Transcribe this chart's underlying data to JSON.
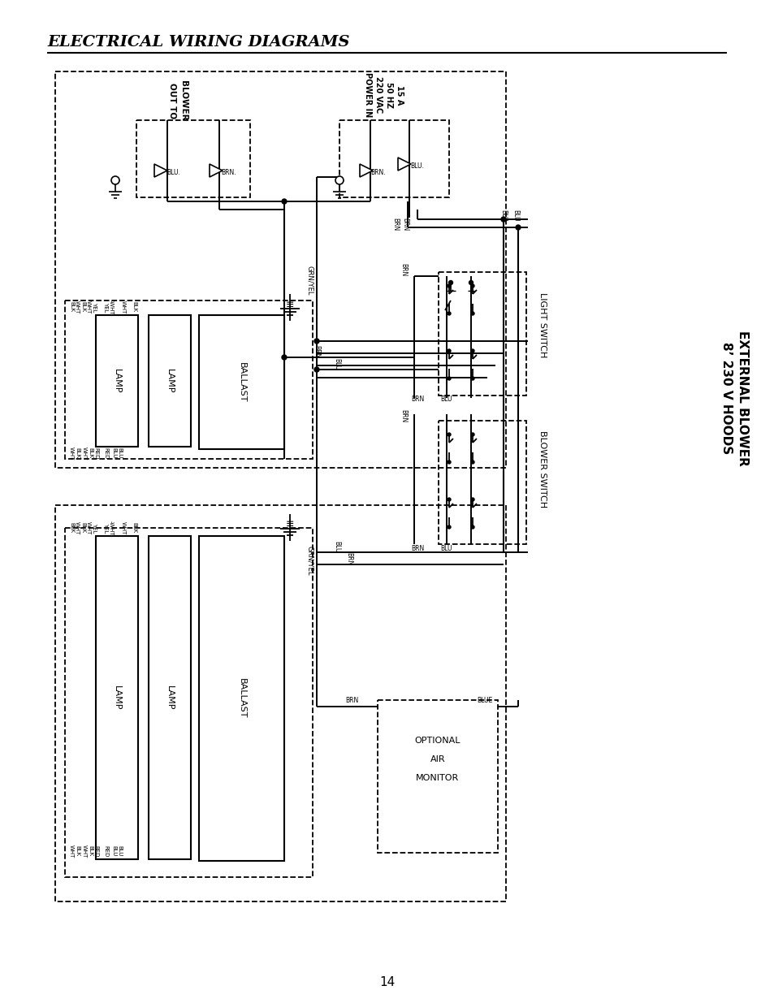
{
  "title": "ELECTRICAL WIRING DIAGRAMS",
  "page_num": "14",
  "bg": "#ffffff",
  "diagram_label1": "8’ 230 V HOODS",
  "diagram_label2": "EXTERNAL BLOWER",
  "light_switch": "LIGHT SWITCH",
  "blower_switch": "BLOWER SWITCH",
  "out_to_blower": [
    "OUT TO",
    "BLOWER"
  ],
  "power_in": [
    "POWER IN",
    "220 VAC",
    "50 HZ",
    "15 A"
  ],
  "optional_monitor": [
    "OPTIONAL",
    "AIR",
    "MONITOR"
  ]
}
